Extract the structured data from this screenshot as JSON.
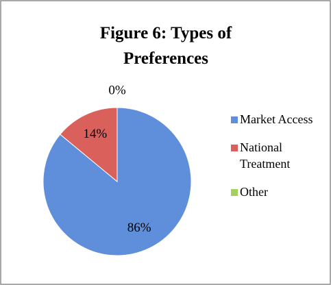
{
  "chart_data": {
    "type": "pie",
    "title": "Figure 6: Types of Preferences",
    "categories": [
      "Market Access",
      "National Treatment",
      "Other"
    ],
    "values": [
      86,
      14,
      0
    ],
    "value_labels": [
      "86%",
      "14%",
      "0%"
    ],
    "colors": [
      "#5f8fdb",
      "#d9605b",
      "#a5cf5f"
    ],
    "legend": "right"
  }
}
